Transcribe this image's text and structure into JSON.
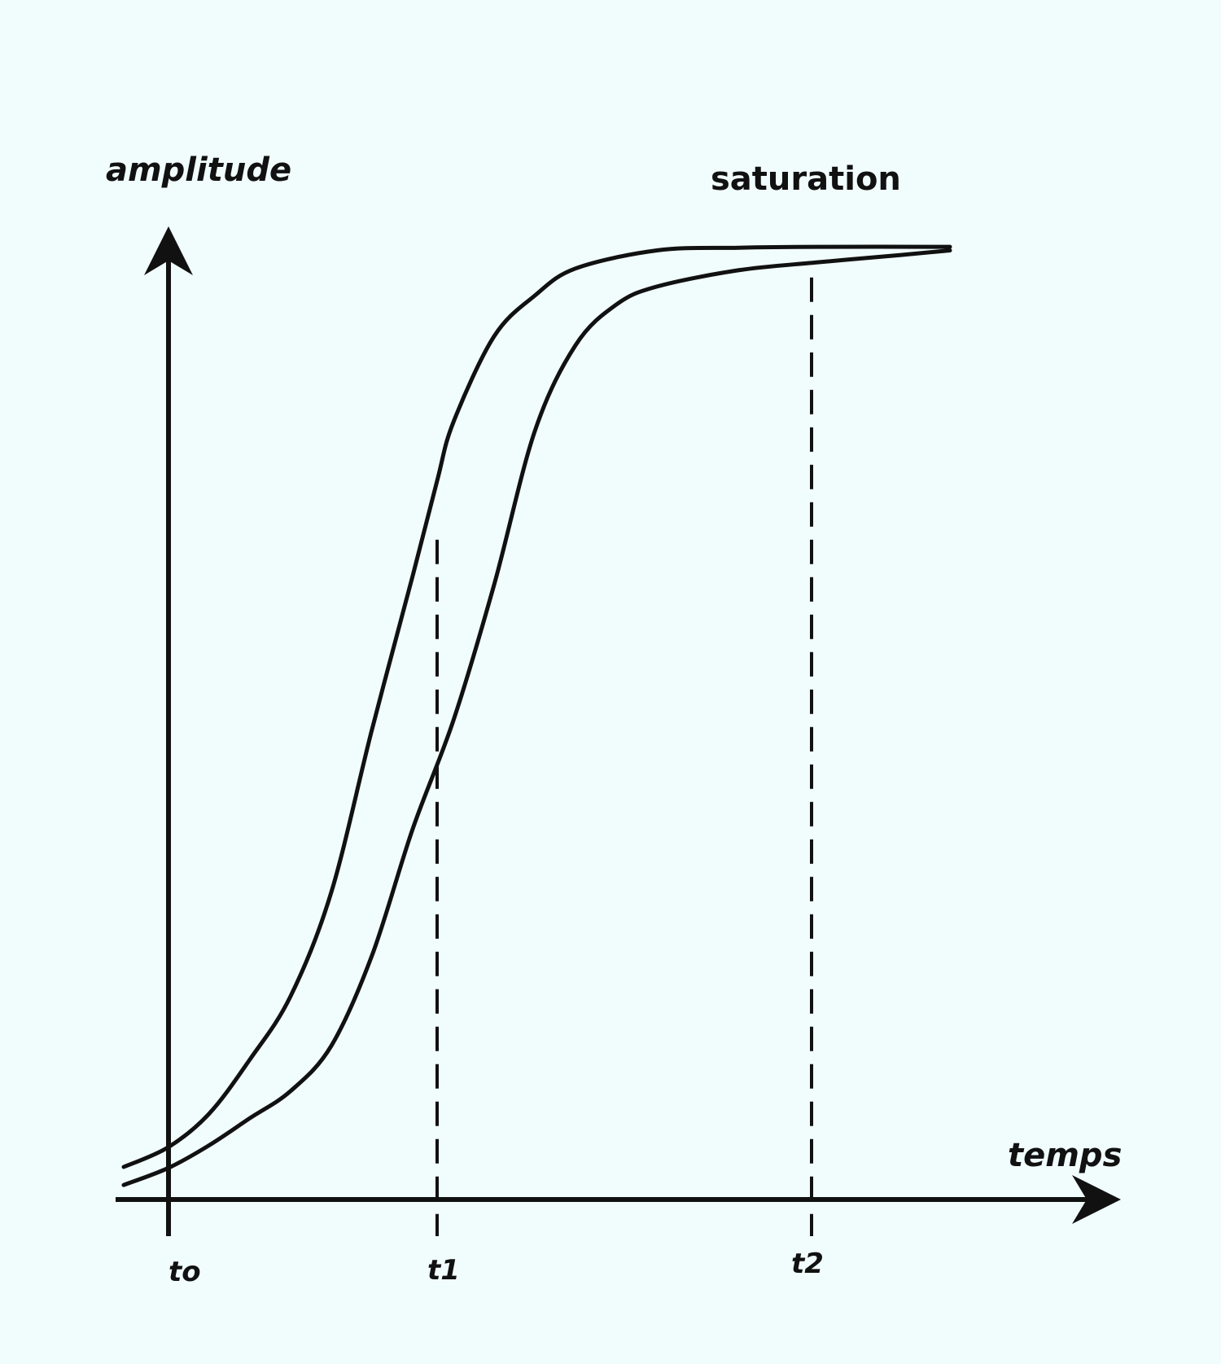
{
  "chart_data": {
    "type": "line",
    "title": "",
    "ylabel": "amplitude",
    "xlabel": "temps",
    "x_tick_labels": [
      {
        "label": "to",
        "t": 0
      },
      {
        "label": "t1",
        "t": 3.3
      },
      {
        "label": "t2",
        "t": 7.9
      }
    ],
    "annotation": "saturation",
    "guide_lines": [
      {
        "t": 3.3,
        "top": 0.73
      },
      {
        "t": 7.9,
        "top": 1.02
      }
    ],
    "xlim": [
      -0.6,
      11.8
    ],
    "ylim": [
      0,
      1.15
    ],
    "grid": false,
    "legend": "none",
    "series": [
      {
        "points": [
          [
            -0.55,
            0.036
          ],
          [
            0.0,
            0.058
          ],
          [
            0.5,
            0.095
          ],
          [
            1.0,
            0.155
          ],
          [
            1.5,
            0.225
          ],
          [
            2.0,
            0.34
          ],
          [
            2.5,
            0.52
          ],
          [
            3.0,
            0.69
          ],
          [
            3.3,
            0.795
          ],
          [
            3.5,
            0.86
          ],
          [
            4.0,
            0.955
          ],
          [
            4.5,
            1.0
          ],
          [
            5.0,
            1.03
          ],
          [
            6.0,
            1.05
          ],
          [
            7.0,
            1.053
          ],
          [
            8.0,
            1.054
          ],
          [
            9.6,
            1.054
          ]
        ]
      },
      {
        "points": [
          [
            -0.55,
            0.016
          ],
          [
            0.0,
            0.035
          ],
          [
            0.5,
            0.06
          ],
          [
            1.0,
            0.09
          ],
          [
            1.5,
            0.12
          ],
          [
            2.0,
            0.17
          ],
          [
            2.5,
            0.27
          ],
          [
            3.0,
            0.41
          ],
          [
            3.5,
            0.53
          ],
          [
            4.0,
            0.68
          ],
          [
            4.5,
            0.85
          ],
          [
            5.0,
            0.945
          ],
          [
            5.5,
            0.99
          ],
          [
            6.0,
            1.01
          ],
          [
            7.0,
            1.028
          ],
          [
            8.0,
            1.037
          ],
          [
            9.0,
            1.045
          ],
          [
            9.6,
            1.05
          ]
        ]
      }
    ]
  }
}
